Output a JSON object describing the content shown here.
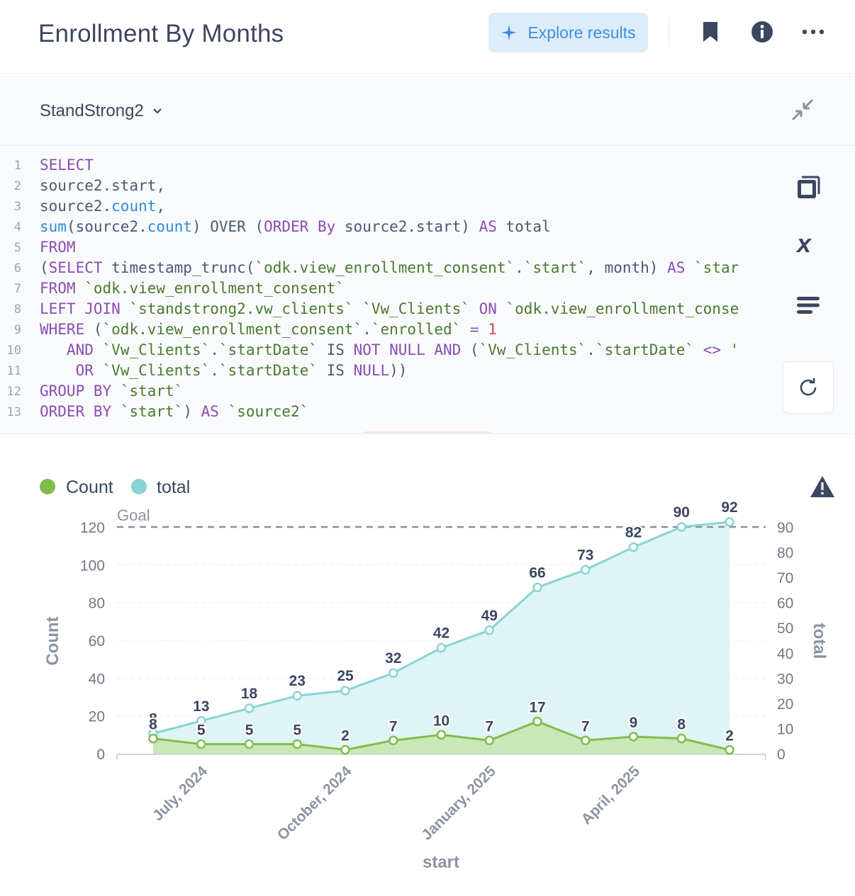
{
  "header": {
    "title": "Enrollment By Months",
    "explore_label": "Explore results",
    "icons": [
      "bookmark-icon",
      "info-icon",
      "more-icon"
    ]
  },
  "database": {
    "name": "StandStrong2",
    "collapse_icon": "collapse-icon"
  },
  "editor": {
    "lines": [
      {
        "n": "1",
        "html": "<span class=\"kw\">SELECT</span>"
      },
      {
        "n": "2",
        "html": "source2.start,"
      },
      {
        "n": "3",
        "html": "source2.<span class=\"fn\">count</span>,"
      },
      {
        "n": "4",
        "html": "<span class=\"fn\">sum</span>(source2.<span class=\"fn\">count</span>) OVER (<span class=\"kw\">ORDER By</span> source2.start) <span class=\"kw\">AS</span> total"
      },
      {
        "n": "5",
        "html": "<span class=\"kw\">FROM</span>"
      },
      {
        "n": "6",
        "html": "(<span class=\"kw\">SELECT</span> timestamp_trunc(<span class=\"str\">`odk.view_enrollment_consent`</span>.<span class=\"str\">`start`</span>, month) <span class=\"kw\">AS</span> <span class=\"str\">`star</span>"
      },
      {
        "n": "7",
        "html": "<span class=\"kw\">FROM</span> <span class=\"str\">`odk.view_enrollment_consent`</span>"
      },
      {
        "n": "8",
        "html": "<span class=\"kw\">LEFT JOIN</span> <span class=\"str\">`standstrong2.vw_clients`</span> <span class=\"str\">`Vw_Clients`</span> <span class=\"kw\">ON</span> <span class=\"str\">`odk.view_enrollment_conse</span>"
      },
      {
        "n": "9",
        "html": "<span class=\"kw\">WHERE</span> (<span class=\"str\">`odk.view_enrollment_consent`</span>.<span class=\"str\">`enrolled`</span> <span class=\"kw\">=</span> <span class=\"num\">1</span>"
      },
      {
        "n": "10",
        "html": "   <span class=\"kw\">AND</span> <span class=\"str\">`Vw_Clients`</span>.<span class=\"str\">`startDate`</span> IS <span class=\"kw\">NOT NULL AND</span> (<span class=\"str\">`Vw_Clients`</span>.<span class=\"str\">`startDate`</span> <span class=\"kw\">&lt;&gt;</span> <span class=\"str\">'</span>"
      },
      {
        "n": "11",
        "html": "    <span class=\"kw\">OR</span> <span class=\"str\">`Vw_Clients`</span>.<span class=\"str\">`startDate`</span> IS <span class=\"kw\">NULL</span>))"
      },
      {
        "n": "12",
        "html": "<span class=\"kw\">GROUP BY</span> <span class=\"str\">`start`</span>"
      },
      {
        "n": "13",
        "html": "<span class=\"kw\">ORDER BY</span> <span class=\"str\">`start`</span>) <span class=\"kw\">AS</span> <span class=\"str\">`source2`</span>"
      }
    ]
  },
  "chart_data": {
    "type": "line",
    "x": [
      "2024-06",
      "2024-07",
      "2024-08",
      "2024-09",
      "2024-10",
      "2024-11",
      "2024-12",
      "2025-01",
      "2025-02",
      "2025-03",
      "2025-04",
      "2025-05",
      "2025-06"
    ],
    "x_tick_labels": [
      "July, 2024",
      "October, 2024",
      "January, 2025",
      "April, 2025"
    ],
    "xlabel": "start",
    "ylabel": "Count",
    "y2label": "total",
    "ylim": [
      0,
      120
    ],
    "y2lim": [
      0,
      90
    ],
    "y_ticks": [
      "0",
      "20",
      "40",
      "60",
      "80",
      "100",
      "120"
    ],
    "y2_ticks": [
      "0",
      "10",
      "20",
      "30",
      "40",
      "50",
      "60",
      "70",
      "80",
      "90"
    ],
    "goal": {
      "label": "Goal",
      "value": 120
    },
    "series": [
      {
        "name": "Count",
        "axis": "left",
        "color": "#84bb4c",
        "values": [
          8,
          5,
          5,
          5,
          2,
          7,
          10,
          7,
          17,
          7,
          9,
          8,
          2
        ],
        "labels": [
          "8",
          "5",
          "5",
          "5",
          "2",
          "7",
          "10",
          "7",
          "17",
          "7",
          "9",
          "8",
          "2"
        ]
      },
      {
        "name": "total",
        "axis": "right",
        "color": "#88d4d4",
        "values": [
          8,
          13,
          18,
          23,
          25,
          32,
          42,
          49,
          66,
          73,
          82,
          90,
          92
        ],
        "labels": [
          "8",
          "13",
          "18",
          "23",
          "25",
          "32",
          "42",
          "49",
          "66",
          "73",
          "82",
          "90",
          "92"
        ]
      }
    ],
    "legend_position": "top-left",
    "warning_icon": "warning-icon"
  }
}
